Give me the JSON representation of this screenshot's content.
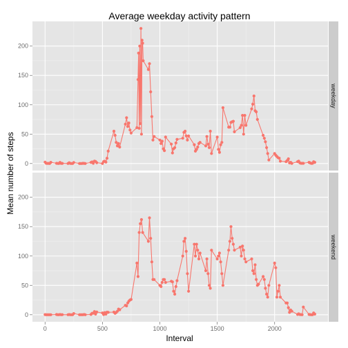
{
  "chart_data": {
    "type": "line",
    "title": "Average weekday activity pattern",
    "xlabel": "Interval",
    "ylabel": "Mean number of steps",
    "xlim": [
      -110,
      2465
    ],
    "ylim": [
      -12,
      242
    ],
    "x_ticks": [
      0,
      500,
      1000,
      1500,
      2000
    ],
    "x_tick_labels": [
      "0",
      "500",
      "1000",
      "1500",
      "2000"
    ],
    "y_ticks": [
      0,
      50,
      100,
      150,
      200
    ],
    "y_tick_labels": [
      "0",
      "50",
      "100",
      "150",
      "200"
    ],
    "grid": true,
    "legend": "none",
    "color": "#f8766d",
    "panels": [
      {
        "strip": "weekday",
        "points": [
          [
            0,
            2.3
          ],
          [
            10,
            0.4
          ],
          [
            20,
            0.2
          ],
          [
            30,
            0.2
          ],
          [
            40,
            0
          ],
          [
            50,
            2
          ],
          [
            100,
            0.3
          ],
          [
            110,
            0.1
          ],
          [
            120,
            0
          ],
          [
            130,
            1.9
          ],
          [
            140,
            0.2
          ],
          [
            150,
            0.2
          ],
          [
            200,
            0
          ],
          [
            210,
            1.3
          ],
          [
            220,
            0.2
          ],
          [
            230,
            0
          ],
          [
            240,
            0
          ],
          [
            250,
            1.7
          ],
          [
            300,
            0
          ],
          [
            310,
            0
          ],
          [
            320,
            0
          ],
          [
            330,
            0.4
          ],
          [
            340,
            0.2
          ],
          [
            350,
            0
          ],
          [
            400,
            1.9
          ],
          [
            410,
            2.7
          ],
          [
            420,
            0.4
          ],
          [
            430,
            4.1
          ],
          [
            440,
            3.4
          ],
          [
            450,
            1.4
          ],
          [
            500,
            0
          ],
          [
            510,
            3.3
          ],
          [
            520,
            3.9
          ],
          [
            530,
            2.4
          ],
          [
            540,
            8.9
          ],
          [
            550,
            21
          ],
          [
            600,
            55
          ],
          [
            610,
            48
          ],
          [
            620,
            36
          ],
          [
            630,
            30
          ],
          [
            640,
            34
          ],
          [
            650,
            28
          ],
          [
            700,
            67
          ],
          [
            710,
            78
          ],
          [
            720,
            63
          ],
          [
            730,
            69
          ],
          [
            740,
            57
          ],
          [
            750,
            52
          ],
          [
            800,
            61
          ],
          [
            810,
            65
          ],
          [
            820,
            60
          ],
          [
            830,
            68
          ],
          [
            840,
            50
          ],
          [
            850,
            55
          ],
          [
            900,
            58
          ],
          [
            910,
            62
          ],
          [
            920,
            58
          ],
          [
            930,
            68
          ],
          [
            940,
            51
          ],
          [
            950,
            46
          ],
          [
            1000,
            40
          ],
          [
            1010,
            34
          ],
          [
            1020,
            38
          ],
          [
            1030,
            25
          ],
          [
            1040,
            22
          ],
          [
            1050,
            45
          ],
          [
            1100,
            33
          ],
          [
            1110,
            18
          ],
          [
            1120,
            25
          ],
          [
            1130,
            27
          ],
          [
            1140,
            35
          ],
          [
            1150,
            41
          ],
          [
            1200,
            43
          ],
          [
            1210,
            53
          ],
          [
            1220,
            55
          ],
          [
            1230,
            47
          ],
          [
            1240,
            40
          ],
          [
            1250,
            47
          ],
          [
            1300,
            32
          ],
          [
            1310,
            21
          ],
          [
            1320,
            24
          ],
          [
            1330,
            28
          ],
          [
            1340,
            34
          ],
          [
            1350,
            38
          ],
          [
            1400,
            30
          ],
          [
            1410,
            46
          ],
          [
            1420,
            33
          ],
          [
            1430,
            27
          ],
          [
            1440,
            22
          ],
          [
            1450,
            17
          ],
          [
            1500,
            28
          ],
          [
            1510,
            24
          ],
          [
            1520,
            19
          ],
          [
            1530,
            32
          ],
          [
            1540,
            36
          ],
          [
            1550,
            87
          ],
          [
            1600,
            49
          ],
          [
            1610,
            48
          ],
          [
            1620,
            60
          ],
          [
            1630,
            71
          ],
          [
            1640,
            72
          ],
          [
            1650,
            54
          ],
          [
            1700,
            61
          ],
          [
            1710,
            65
          ],
          [
            1720,
            72
          ],
          [
            1730,
            70
          ],
          [
            1740,
            82
          ],
          [
            1750,
            65
          ],
          [
            1800,
            93
          ],
          [
            1810,
            101
          ],
          [
            1820,
            115
          ],
          [
            1830,
            95
          ],
          [
            1840,
            88
          ],
          [
            1850,
            75
          ],
          [
            1900,
            48
          ],
          [
            1910,
            43
          ],
          [
            1920,
            37
          ],
          [
            1930,
            27
          ],
          [
            1940,
            17
          ],
          [
            1950,
            6
          ],
          [
            2000,
            17
          ],
          [
            2010,
            14
          ],
          [
            2020,
            12
          ],
          [
            2030,
            10
          ],
          [
            2040,
            9
          ],
          [
            2050,
            4
          ],
          [
            2100,
            3
          ],
          [
            2110,
            5
          ],
          [
            2120,
            8
          ],
          [
            2130,
            1
          ],
          [
            2140,
            2
          ],
          [
            2150,
            0.2
          ],
          [
            2200,
            3
          ],
          [
            2210,
            4
          ],
          [
            2220,
            1
          ],
          [
            2230,
            0.4
          ],
          [
            2240,
            0.3
          ],
          [
            2250,
            0.3
          ],
          [
            2300,
            2
          ],
          [
            2310,
            1
          ],
          [
            2320,
            0.2
          ],
          [
            2330,
            0.4
          ],
          [
            2340,
            3
          ],
          [
            2350,
            2
          ]
        ],
        "peaks": [
          [
            835,
            230
          ],
          [
            845,
            210
          ],
          [
            850,
            205
          ],
          [
            825,
            200
          ],
          [
            815,
            188
          ],
          [
            855,
            175
          ],
          [
            900,
            160
          ],
          [
            910,
            170
          ],
          [
            920,
            122
          ],
          [
            810,
            143
          ],
          [
            930,
            80
          ],
          [
            940,
            40
          ],
          [
            1550,
            95
          ],
          [
            1610,
            62
          ],
          [
            1620,
            70
          ],
          [
            1720,
            82
          ],
          [
            1830,
            90
          ],
          [
            1730,
            50
          ],
          [
            1600,
            62
          ],
          [
            1440,
            55
          ],
          [
            1500,
            45
          ],
          [
            1350,
            36
          ]
        ]
      },
      {
        "strip": "weekend",
        "points": [
          [
            0,
            0.2
          ],
          [
            10,
            0
          ],
          [
            20,
            0
          ],
          [
            30,
            0
          ],
          [
            40,
            0
          ],
          [
            50,
            0
          ],
          [
            100,
            0.3
          ],
          [
            110,
            0
          ],
          [
            120,
            0
          ],
          [
            130,
            0.3
          ],
          [
            140,
            0
          ],
          [
            150,
            0.1
          ],
          [
            200,
            0
          ],
          [
            210,
            0.3
          ],
          [
            220,
            0
          ],
          [
            230,
            0
          ],
          [
            240,
            0
          ],
          [
            250,
            2
          ],
          [
            300,
            0
          ],
          [
            310,
            0
          ],
          [
            320,
            0
          ],
          [
            330,
            0
          ],
          [
            340,
            0.3
          ],
          [
            350,
            0
          ],
          [
            400,
            0.5
          ],
          [
            410,
            2.5
          ],
          [
            420,
            2.5
          ],
          [
            430,
            5.4
          ],
          [
            440,
            1
          ],
          [
            450,
            4.6
          ],
          [
            500,
            3
          ],
          [
            510,
            0.3
          ],
          [
            520,
            3.6
          ],
          [
            530,
            1.1
          ],
          [
            540,
            4.4
          ],
          [
            550,
            4.1
          ],
          [
            600,
            4.5
          ],
          [
            610,
            2.4
          ],
          [
            620,
            3.9
          ],
          [
            630,
            5.9
          ],
          [
            640,
            9.6
          ],
          [
            650,
            8.5
          ],
          [
            700,
            16
          ],
          [
            710,
            15
          ],
          [
            720,
            20
          ],
          [
            730,
            23
          ],
          [
            740,
            25
          ],
          [
            750,
            26
          ],
          [
            800,
            88
          ],
          [
            810,
            65
          ],
          [
            820,
            140
          ],
          [
            830,
            160
          ],
          [
            840,
            162
          ],
          [
            850,
            140
          ],
          [
            900,
            110
          ],
          [
            910,
            120
          ],
          [
            920,
            100
          ],
          [
            930,
            90
          ],
          [
            940,
            85
          ],
          [
            950,
            60
          ],
          [
            1000,
            50
          ],
          [
            1010,
            48
          ],
          [
            1020,
            55
          ],
          [
            1030,
            60
          ],
          [
            1040,
            60
          ],
          [
            1050,
            55
          ],
          [
            1100,
            57
          ],
          [
            1110,
            56
          ],
          [
            1120,
            40
          ],
          [
            1130,
            35
          ],
          [
            1140,
            48
          ],
          [
            1150,
            58
          ],
          [
            1200,
            100
          ],
          [
            1210,
            125
          ],
          [
            1220,
            130
          ],
          [
            1230,
            90
          ],
          [
            1240,
            70
          ],
          [
            1250,
            40
          ],
          [
            1300,
            120
          ],
          [
            1310,
            100
          ],
          [
            1320,
            115
          ],
          [
            1330,
            110
          ],
          [
            1340,
            95
          ],
          [
            1350,
            105
          ],
          [
            1400,
            75
          ],
          [
            1410,
            95
          ],
          [
            1420,
            70
          ],
          [
            1430,
            50
          ],
          [
            1440,
            45
          ],
          [
            1450,
            60
          ],
          [
            1500,
            95
          ],
          [
            1510,
            100
          ],
          [
            1520,
            105
          ],
          [
            1530,
            90
          ],
          [
            1540,
            70
          ],
          [
            1550,
            50
          ],
          [
            1600,
            110
          ],
          [
            1610,
            125
          ],
          [
            1620,
            150
          ],
          [
            1630,
            130
          ],
          [
            1640,
            120
          ],
          [
            1650,
            110
          ],
          [
            1700,
            115
          ],
          [
            1710,
            100
          ],
          [
            1720,
            90
          ],
          [
            1730,
            110
          ],
          [
            1740,
            95
          ],
          [
            1750,
            85
          ],
          [
            1800,
            95
          ],
          [
            1810,
            80
          ],
          [
            1820,
            65
          ],
          [
            1830,
            75
          ],
          [
            1840,
            60
          ],
          [
            1850,
            50
          ],
          [
            1900,
            65
          ],
          [
            1910,
            60
          ],
          [
            1920,
            45
          ],
          [
            1930,
            35
          ],
          [
            1940,
            30
          ],
          [
            1950,
            45
          ],
          [
            2000,
            75
          ],
          [
            2010,
            80
          ],
          [
            2020,
            30
          ],
          [
            2030,
            40
          ],
          [
            2040,
            50
          ],
          [
            2050,
            30
          ],
          [
            2100,
            20
          ],
          [
            2110,
            20
          ],
          [
            2120,
            12
          ],
          [
            2130,
            4
          ],
          [
            2140,
            8
          ],
          [
            2150,
            6
          ],
          [
            2200,
            0.5
          ],
          [
            2210,
            1.5
          ],
          [
            2220,
            0.3
          ],
          [
            2230,
            0.2
          ],
          [
            2240,
            0
          ],
          [
            2250,
            13
          ],
          [
            2300,
            0.5
          ],
          [
            2310,
            0.2
          ],
          [
            2320,
            0
          ],
          [
            2330,
            0
          ],
          [
            2340,
            3
          ],
          [
            2350,
            1
          ]
        ],
        "peaks": [
          [
            830,
            155
          ],
          [
            900,
            125
          ],
          [
            910,
            165
          ],
          [
            920,
            130
          ],
          [
            940,
            60
          ],
          [
            1450,
            110
          ],
          [
            1720,
            117
          ],
          [
            1750,
            90
          ],
          [
            1810,
            75
          ],
          [
            1820,
            70
          ],
          [
            1830,
            85
          ],
          [
            1860,
            52
          ],
          [
            1950,
            50
          ],
          [
            2000,
            88
          ],
          [
            1230,
            108
          ],
          [
            1320,
            120
          ]
        ]
      }
    ]
  }
}
